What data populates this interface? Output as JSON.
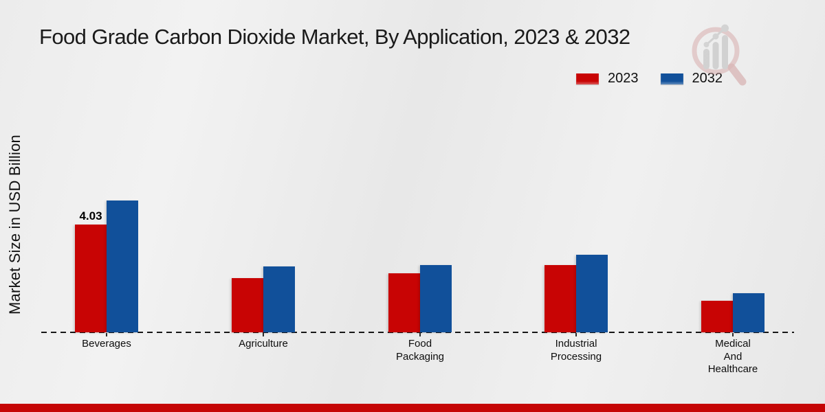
{
  "page": {
    "title": "Food Grade Carbon Dioxide Market, By Application, 2023 & 2032"
  },
  "y_axis": {
    "label": "Market Size in USD Billion"
  },
  "legend": {
    "items": [
      {
        "label": "2023",
        "color": "#c80404"
      },
      {
        "label": "2032",
        "color": "#11509a"
      }
    ]
  },
  "footer": {
    "band_color": "#c50505"
  },
  "watermark": {
    "icon": "magnifier-bar-chart-logo-icon"
  },
  "chart_data": {
    "type": "bar",
    "title": "Food Grade Carbon Dioxide Market, By Application, 2023 & 2032",
    "xlabel": "",
    "ylabel": "Market Size in USD Billion",
    "categories": [
      "Beverages",
      "Agriculture",
      "Food Packaging",
      "Industrial Processing",
      "Medical And Healthcare"
    ],
    "categories_display": [
      [
        "Beverages"
      ],
      [
        "Agriculture"
      ],
      [
        "Food",
        "Packaging"
      ],
      [
        "Industrial",
        "Processing"
      ],
      [
        "Medical",
        "And",
        "Healthcare"
      ]
    ],
    "series": [
      {
        "name": "2023",
        "color": "#c80404",
        "values": [
          4.03,
          2.03,
          2.21,
          2.52,
          1.18
        ]
      },
      {
        "name": "2032",
        "color": "#11509a",
        "values": [
          4.93,
          2.46,
          2.52,
          2.9,
          1.46
        ]
      }
    ],
    "bar_labels": [
      {
        "series": "2023",
        "category": "Beverages",
        "text": "4.03"
      }
    ],
    "units": "USD Billion",
    "ylim": [
      0,
      5.2
    ],
    "grid": false,
    "y_axis_ticks_visible": false,
    "baseline_style": "dashed",
    "legend_position": "top-right"
  }
}
